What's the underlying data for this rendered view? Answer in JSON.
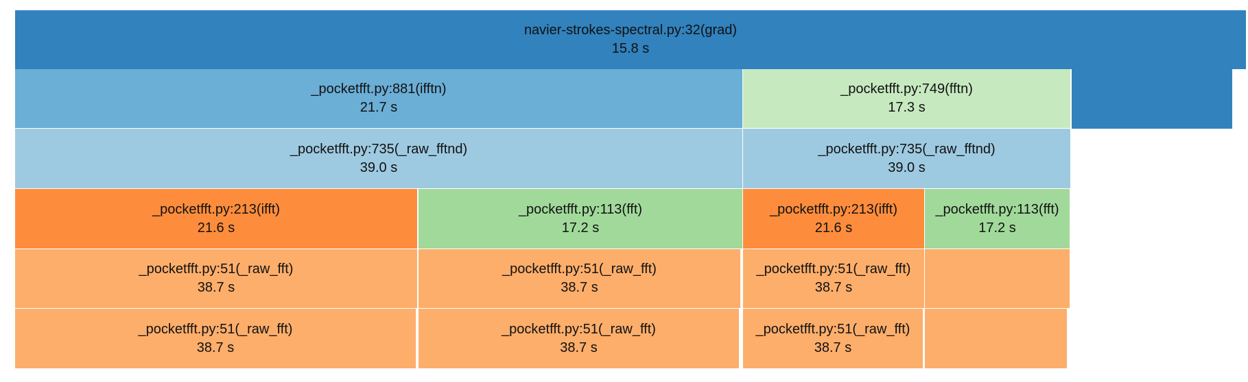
{
  "colors": {
    "dark_blue": "#3182bd",
    "mid_blue": "#6baed6",
    "light_blue": "#9ecae1",
    "light_green": "#c7e9c0",
    "green": "#a1d99b",
    "orange": "#fd8d3c",
    "light_orange": "#fdae6b"
  },
  "nodes": [
    {
      "id": "n0",
      "name": "navier-strokes-spectral.py:32(grad)",
      "value": "15.8 s",
      "color": "dark_blue"
    },
    {
      "id": "n0b",
      "name": "",
      "value": "",
      "color": "dark_blue"
    },
    {
      "id": "n1",
      "name": "_pocketfft.py:881(ifftn)",
      "value": "21.7 s",
      "color": "mid_blue"
    },
    {
      "id": "n2",
      "name": "_pocketfft.py:749(fftn)",
      "value": "17.3 s",
      "color": "light_green"
    },
    {
      "id": "n3",
      "name": "_pocketfft.py:735(_raw_fftnd)",
      "value": "39.0 s",
      "color": "light_blue"
    },
    {
      "id": "n4",
      "name": "_pocketfft.py:735(_raw_fftnd)",
      "value": "39.0 s",
      "color": "light_blue"
    },
    {
      "id": "n5",
      "name": "_pocketfft.py:213(ifft)",
      "value": "21.6 s",
      "color": "orange"
    },
    {
      "id": "n6",
      "name": "_pocketfft.py:113(fft)",
      "value": "17.2 s",
      "color": "green"
    },
    {
      "id": "n7",
      "name": "_pocketfft.py:213(ifft)",
      "value": "21.6 s",
      "color": "orange"
    },
    {
      "id": "n8",
      "name": "_pocketfft.py:113(fft)",
      "value": "17.2 s",
      "color": "green"
    },
    {
      "id": "n9",
      "name": "_pocketfft.py:51(_raw_fft)",
      "value": "38.7 s",
      "color": "light_orange"
    },
    {
      "id": "n10",
      "name": "_pocketfft.py:51(_raw_fft)",
      "value": "38.7 s",
      "color": "light_orange"
    },
    {
      "id": "n11",
      "name": "_pocketfft.py:51(_raw_fft)",
      "value": "38.7 s",
      "color": "light_orange"
    },
    {
      "id": "n12",
      "name": "",
      "value": "",
      "color": "light_orange"
    },
    {
      "id": "n13",
      "name": "_pocketfft.py:51(_raw_fft)",
      "value": "38.7 s",
      "color": "light_orange"
    },
    {
      "id": "n14",
      "name": "_pocketfft.py:51(_raw_fft)",
      "value": "38.7 s",
      "color": "light_orange"
    },
    {
      "id": "n15",
      "name": "_pocketfft.py:51(_raw_fft)",
      "value": "38.7 s",
      "color": "light_orange"
    },
    {
      "id": "n16",
      "name": "",
      "value": "",
      "color": "light_orange"
    }
  ]
}
